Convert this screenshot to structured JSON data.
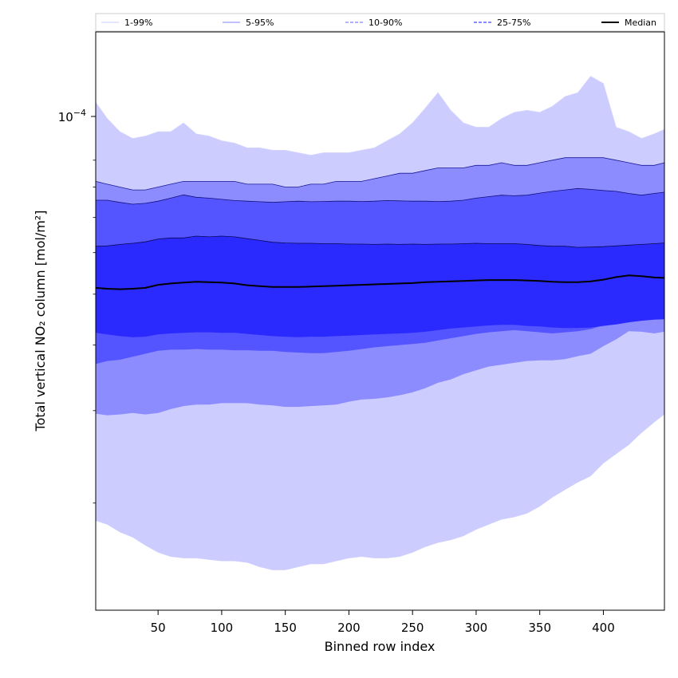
{
  "chart_data": {
    "type": "area",
    "title": "",
    "xlabel": "Binned row index",
    "ylabel": "Total vertical NO₂ column [mol/m²]",
    "yscale": "log",
    "xlim": [
      1,
      448
    ],
    "ylim": [
      1.25e-05,
      0.000158
    ],
    "x_ticks": [
      50,
      100,
      150,
      200,
      250,
      300,
      350,
      400
    ],
    "y_major_tick": {
      "value": 0.0001,
      "base": "10",
      "exponent": "−4"
    },
    "y_minor_ticks": [
      2e-05,
      3e-05,
      4e-05,
      5e-05,
      6e-05,
      7e-05,
      8e-05,
      9e-05
    ],
    "x": [
      1,
      10,
      20,
      30,
      40,
      50,
      60,
      70,
      80,
      90,
      100,
      110,
      120,
      130,
      140,
      150,
      160,
      170,
      180,
      190,
      200,
      210,
      220,
      230,
      240,
      250,
      260,
      270,
      280,
      290,
      300,
      310,
      320,
      330,
      340,
      350,
      360,
      370,
      380,
      390,
      400,
      410,
      420,
      430,
      440,
      448
    ],
    "bands": [
      {
        "name": "1-99%",
        "color": "#ccccff",
        "line_color": "#d4d4ff",
        "line_style": "solid",
        "upper": [
          0.000116,
          0.000108,
          0.000102,
          9.9e-05,
          0.0001,
          0.000102,
          0.000102,
          0.000106,
          0.000101,
          0.0001,
          9.8e-05,
          9.7e-05,
          9.5e-05,
          9.5e-05,
          9.4e-05,
          9.4e-05,
          9.3e-05,
          9.2e-05,
          9.3e-05,
          9.3e-05,
          9.3e-05,
          9.4e-05,
          9.5e-05,
          9.8e-05,
          0.000101,
          0.000106,
          0.000113,
          0.000121,
          0.000112,
          0.000106,
          0.000104,
          0.000104,
          0.000108,
          0.000111,
          0.000112,
          0.000111,
          0.000114,
          0.000119,
          0.000121,
          0.00013,
          0.000126,
          0.000104,
          0.000102,
          9.9e-05,
          0.000101,
          0.000103
        ],
        "lower": [
          1.85e-05,
          1.82e-05,
          1.76e-05,
          1.72e-05,
          1.66e-05,
          1.61e-05,
          1.58e-05,
          1.57e-05,
          1.57e-05,
          1.56e-05,
          1.55e-05,
          1.55e-05,
          1.54e-05,
          1.51e-05,
          1.49e-05,
          1.49e-05,
          1.51e-05,
          1.53e-05,
          1.53e-05,
          1.55e-05,
          1.57e-05,
          1.58e-05,
          1.57e-05,
          1.57e-05,
          1.58e-05,
          1.61e-05,
          1.65e-05,
          1.68e-05,
          1.7e-05,
          1.73e-05,
          1.78e-05,
          1.82e-05,
          1.86e-05,
          1.88e-05,
          1.91e-05,
          1.97e-05,
          2.05e-05,
          2.12e-05,
          2.19e-05,
          2.25e-05,
          2.38e-05,
          2.48e-05,
          2.58e-05,
          2.72e-05,
          2.85e-05,
          2.95e-05
        ]
      },
      {
        "name": "5-95%",
        "color": "#8c8cff",
        "line_color": "#1a1a99",
        "line_style": "solid",
        "upper": [
          8.2e-05,
          8.1e-05,
          8e-05,
          7.9e-05,
          7.9e-05,
          8e-05,
          8.1e-05,
          8.2e-05,
          8.2e-05,
          8.2e-05,
          8.2e-05,
          8.2e-05,
          8.1e-05,
          8.1e-05,
          8.1e-05,
          8e-05,
          8e-05,
          8.1e-05,
          8.1e-05,
          8.2e-05,
          8.2e-05,
          8.2e-05,
          8.3e-05,
          8.4e-05,
          8.5e-05,
          8.5e-05,
          8.6e-05,
          8.7e-05,
          8.7e-05,
          8.7e-05,
          8.8e-05,
          8.8e-05,
          8.9e-05,
          8.8e-05,
          8.8e-05,
          8.9e-05,
          9e-05,
          9.1e-05,
          9.1e-05,
          9.1e-05,
          9.1e-05,
          9e-05,
          8.9e-05,
          8.8e-05,
          8.8e-05,
          8.9e-05
        ],
        "lower": [
          2.96e-05,
          2.94e-05,
          2.95e-05,
          2.97e-05,
          2.95e-05,
          2.97e-05,
          3.02e-05,
          3.06e-05,
          3.08e-05,
          3.08e-05,
          3.1e-05,
          3.1e-05,
          3.1e-05,
          3.08e-05,
          3.07e-05,
          3.05e-05,
          3.05e-05,
          3.06e-05,
          3.07e-05,
          3.08e-05,
          3.12e-05,
          3.15e-05,
          3.16e-05,
          3.18e-05,
          3.21e-05,
          3.25e-05,
          3.31e-05,
          3.39e-05,
          3.44e-05,
          3.52e-05,
          3.58e-05,
          3.64e-05,
          3.67e-05,
          3.7e-05,
          3.73e-05,
          3.74e-05,
          3.74e-05,
          3.76e-05,
          3.81e-05,
          3.85e-05,
          3.98e-05,
          4.1e-05,
          4.25e-05,
          4.24e-05,
          4.21e-05,
          4.24e-05
        ]
      },
      {
        "name": "10-90%",
        "color": "#5555ff",
        "line_color": "#11117a",
        "line_style": "dashed",
        "upper": [
          7.55e-05,
          7.55e-05,
          7.48e-05,
          7.42e-05,
          7.45e-05,
          7.52e-05,
          7.62e-05,
          7.73e-05,
          7.65e-05,
          7.62e-05,
          7.58e-05,
          7.54e-05,
          7.52e-05,
          7.5e-05,
          7.48e-05,
          7.5e-05,
          7.52e-05,
          7.5e-05,
          7.51e-05,
          7.52e-05,
          7.52e-05,
          7.51e-05,
          7.52e-05,
          7.54e-05,
          7.53e-05,
          7.52e-05,
          7.52e-05,
          7.51e-05,
          7.52e-05,
          7.55e-05,
          7.62e-05,
          7.67e-05,
          7.72e-05,
          7.7e-05,
          7.72e-05,
          7.79e-05,
          7.85e-05,
          7.9e-05,
          7.95e-05,
          7.92e-05,
          7.88e-05,
          7.85e-05,
          7.78e-05,
          7.72e-05,
          7.78e-05,
          7.82e-05
        ],
        "lower": [
          3.68e-05,
          3.73e-05,
          3.75e-05,
          3.8e-05,
          3.85e-05,
          3.9e-05,
          3.92e-05,
          3.92e-05,
          3.93e-05,
          3.92e-05,
          3.92e-05,
          3.91e-05,
          3.91e-05,
          3.9e-05,
          3.9e-05,
          3.88e-05,
          3.87e-05,
          3.86e-05,
          3.86e-05,
          3.88e-05,
          3.9e-05,
          3.93e-05,
          3.96e-05,
          3.98e-05,
          4e-05,
          4.02e-05,
          4.04e-05,
          4.08e-05,
          4.12e-05,
          4.16e-05,
          4.2e-05,
          4.23e-05,
          4.25e-05,
          4.27e-05,
          4.25e-05,
          4.23e-05,
          4.21e-05,
          4.23e-05,
          4.25e-05,
          4.29e-05,
          4.36e-05,
          4.42e-05,
          4.52e-05,
          4.55e-05,
          4.57e-05,
          4.58e-05
        ]
      },
      {
        "name": "25-75%",
        "color": "#2a2aff",
        "line_color": "#0a0a55",
        "line_style": "dashed",
        "upper": [
          6.17e-05,
          6.18e-05,
          6.22e-05,
          6.25e-05,
          6.29e-05,
          6.37e-05,
          6.4e-05,
          6.4e-05,
          6.45e-05,
          6.43e-05,
          6.45e-05,
          6.43e-05,
          6.38e-05,
          6.33e-05,
          6.28e-05,
          6.26e-05,
          6.25e-05,
          6.25e-05,
          6.24e-05,
          6.24e-05,
          6.23e-05,
          6.23e-05,
          6.22e-05,
          6.23e-05,
          6.22e-05,
          6.23e-05,
          6.22e-05,
          6.23e-05,
          6.23e-05,
          6.24e-05,
          6.25e-05,
          6.24e-05,
          6.24e-05,
          6.24e-05,
          6.22e-05,
          6.19e-05,
          6.17e-05,
          6.17e-05,
          6.14e-05,
          6.15e-05,
          6.16e-05,
          6.18e-05,
          6.2e-05,
          6.22e-05,
          6.24e-05,
          6.26e-05
        ],
        "lower": [
          4.22e-05,
          4.19e-05,
          4.16e-05,
          4.14e-05,
          4.15e-05,
          4.19e-05,
          4.21e-05,
          4.22e-05,
          4.23e-05,
          4.23e-05,
          4.22e-05,
          4.22e-05,
          4.2e-05,
          4.18e-05,
          4.16e-05,
          4.15e-05,
          4.14e-05,
          4.15e-05,
          4.15e-05,
          4.16e-05,
          4.17e-05,
          4.18e-05,
          4.19e-05,
          4.2e-05,
          4.21e-05,
          4.22e-05,
          4.24e-05,
          4.27e-05,
          4.3e-05,
          4.32e-05,
          4.34e-05,
          4.36e-05,
          4.37e-05,
          4.37e-05,
          4.35e-05,
          4.34e-05,
          4.32e-05,
          4.31e-05,
          4.31e-05,
          4.32e-05,
          4.35e-05,
          4.38e-05,
          4.42e-05,
          4.45e-05,
          4.47e-05,
          4.48e-05
        ]
      }
    ],
    "median": {
      "name": "Median",
      "color": "#000000",
      "values": [
        5.14e-05,
        5.12e-05,
        5.11e-05,
        5.12e-05,
        5.14e-05,
        5.21e-05,
        5.24e-05,
        5.26e-05,
        5.28e-05,
        5.27e-05,
        5.26e-05,
        5.24e-05,
        5.2e-05,
        5.18e-05,
        5.16e-05,
        5.16e-05,
        5.16e-05,
        5.17e-05,
        5.18e-05,
        5.19e-05,
        5.2e-05,
        5.21e-05,
        5.22e-05,
        5.23e-05,
        5.24e-05,
        5.25e-05,
        5.27e-05,
        5.28e-05,
        5.29e-05,
        5.3e-05,
        5.31e-05,
        5.32e-05,
        5.32e-05,
        5.32e-05,
        5.31e-05,
        5.3e-05,
        5.28e-05,
        5.27e-05,
        5.27e-05,
        5.29e-05,
        5.33e-05,
        5.39e-05,
        5.43e-05,
        5.41e-05,
        5.38e-05,
        5.37e-05
      ]
    },
    "legend": {
      "placement": "top",
      "entries": [
        {
          "label": "1-99%",
          "style": "solid",
          "color": "#d4d4ff"
        },
        {
          "label": "5-95%",
          "style": "solid",
          "color": "#9a9aff"
        },
        {
          "label": "10-90%",
          "style": "dashed",
          "color": "#8080ff"
        },
        {
          "label": "25-75%",
          "style": "dashed",
          "color": "#4040ff"
        },
        {
          "label": "Median",
          "style": "solid",
          "color": "#000000"
        }
      ]
    },
    "grid": false
  }
}
